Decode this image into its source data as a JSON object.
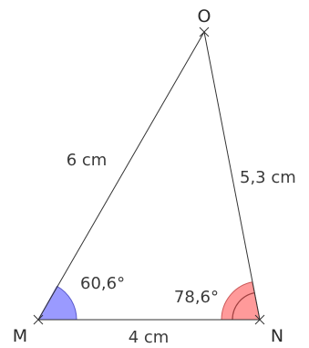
{
  "vertices": {
    "M": "M",
    "N": "N",
    "O": "O"
  },
  "sides": {
    "MO": "6 cm",
    "ON": "5,3 cm",
    "MN": "4 cm"
  },
  "angles": {
    "M": "60,6°",
    "N": "78,6°"
  },
  "colors": {
    "line": "#333333",
    "angle_M_fill": "#9a9aff",
    "angle_N_fill": "#ff9a9a"
  }
}
